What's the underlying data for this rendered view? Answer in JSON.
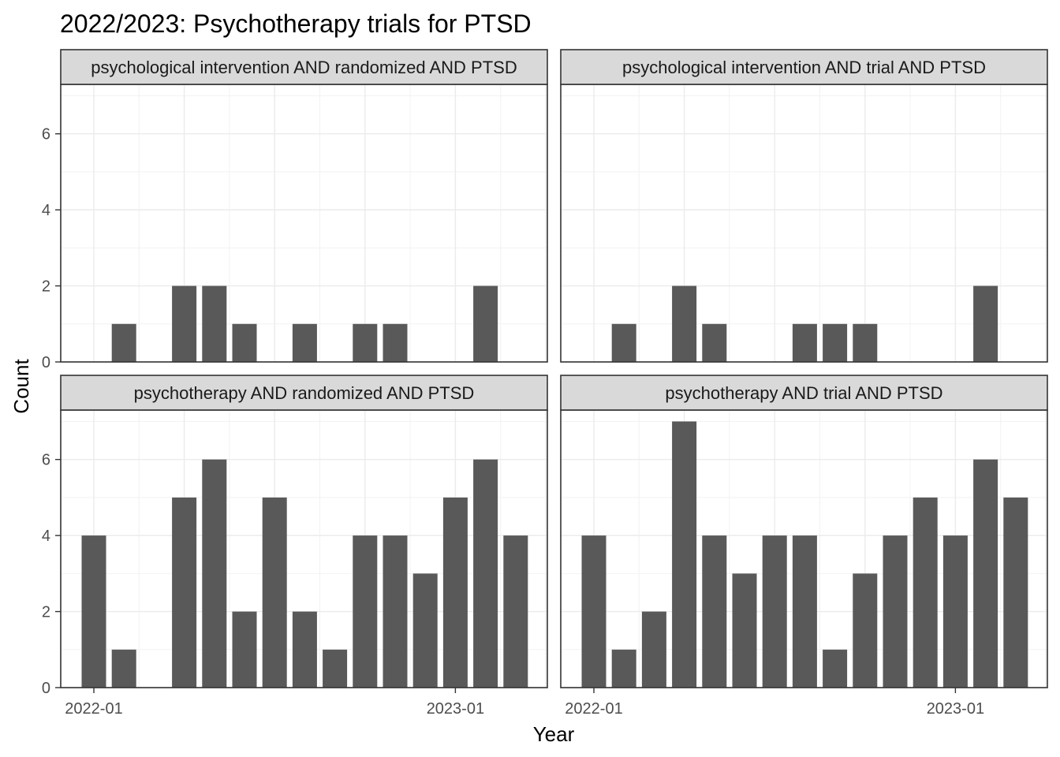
{
  "chart_data": {
    "type": "bar",
    "title": "2022/2023: Psychotherapy trials for PTSD",
    "xlabel": "Year",
    "ylabel": "Count",
    "x_tick_labels": [
      "2022-01",
      "2023-01"
    ],
    "y_ticks": [
      0,
      2,
      4,
      6
    ],
    "ylim": [
      0,
      7.3
    ],
    "grid": true,
    "months": [
      "2022-01",
      "2022-02",
      "2022-03",
      "2022-04",
      "2022-05",
      "2022-06",
      "2022-07",
      "2022-08",
      "2022-09",
      "2022-10",
      "2022-11",
      "2022-12",
      "2023-01",
      "2023-02",
      "2023-03"
    ],
    "bar_color": "#595959",
    "panels": [
      {
        "label": "psychological intervention AND randomized AND PTSD",
        "values": [
          0,
          1,
          0,
          2,
          2,
          1,
          0,
          1,
          0,
          1,
          1,
          0,
          0,
          2,
          0
        ]
      },
      {
        "label": "psychological intervention AND trial AND PTSD",
        "values": [
          0,
          1,
          0,
          2,
          1,
          0,
          0,
          1,
          1,
          1,
          0,
          0,
          0,
          2,
          0
        ]
      },
      {
        "label": "psychotherapy AND randomized AND PTSD",
        "values": [
          4,
          1,
          0,
          5,
          6,
          2,
          5,
          2,
          1,
          4,
          4,
          3,
          5,
          6,
          4
        ]
      },
      {
        "label": "psychotherapy AND trial AND PTSD",
        "values": [
          4,
          1,
          2,
          7,
          4,
          3,
          4,
          4,
          1,
          3,
          4,
          5,
          4,
          6,
          5
        ]
      }
    ]
  }
}
